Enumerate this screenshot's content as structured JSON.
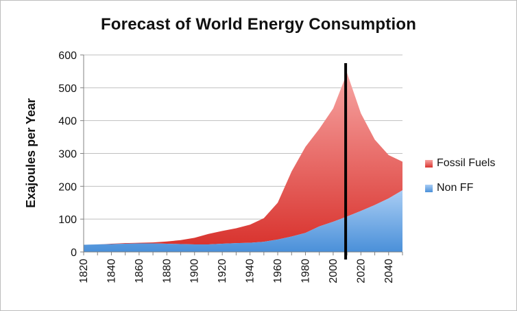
{
  "chart_data": {
    "type": "area",
    "stacked": true,
    "title": "Forecast of World Energy Consumption",
    "xlabel": "",
    "ylabel": "Exajoules per Year",
    "xlim": [
      1820,
      2050
    ],
    "ylim": [
      0,
      600
    ],
    "yticks": [
      0,
      100,
      200,
      300,
      400,
      500,
      600
    ],
    "xticks": [
      1820,
      1840,
      1860,
      1880,
      1900,
      1920,
      1940,
      1960,
      1980,
      2000,
      2020,
      2040
    ],
    "x": [
      1820,
      1830,
      1840,
      1850,
      1860,
      1870,
      1880,
      1890,
      1900,
      1910,
      1920,
      1930,
      1940,
      1950,
      1960,
      1970,
      1980,
      1990,
      2000,
      2010,
      2020,
      2030,
      2040,
      2050
    ],
    "series": [
      {
        "name": "Non FF",
        "color": "#5b9bd5",
        "values": [
          22,
          23,
          24,
          25,
          26,
          26,
          25,
          24,
          23,
          23,
          25,
          27,
          28,
          31,
          38,
          47,
          58,
          78,
          92,
          108,
          125,
          143,
          163,
          188
        ]
      },
      {
        "name": "Fossil Fuels",
        "color": "#e35a5a",
        "values": [
          0,
          0,
          1,
          2,
          2,
          3,
          7,
          12,
          20,
          32,
          39,
          45,
          55,
          72,
          112,
          198,
          262,
          297,
          345,
          437,
          297,
          199,
          132,
          87
        ]
      }
    ],
    "annotations": [
      {
        "type": "vertical-line",
        "x": 2009,
        "color": "#000000"
      }
    ],
    "legend_position": "right"
  }
}
